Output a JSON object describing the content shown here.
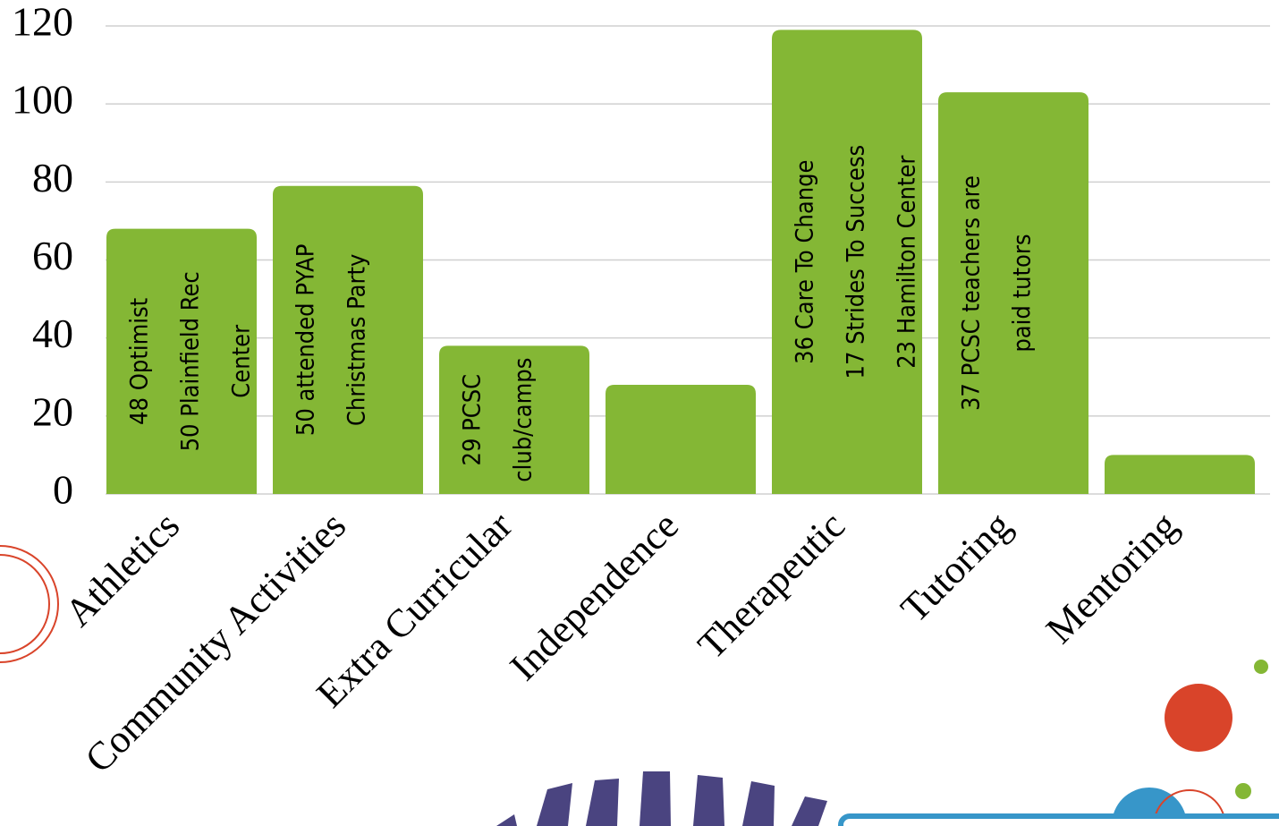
{
  "chart_data": {
    "type": "bar",
    "categories": [
      "Athletics",
      "Community Activities",
      "Extra Curricular",
      "Independence",
      "Therapeutic",
      "Tutoring",
      "Mentoring"
    ],
    "values": [
      68,
      79,
      38,
      28,
      119,
      103,
      10
    ],
    "color": "#84b735",
    "bar_labels": [
      [
        "48 Optimist",
        "50 Plainfield Rec",
        "Center"
      ],
      [
        "50 attended PYAP",
        "Christmas Party"
      ],
      [
        "29 PCSC",
        "club/camps"
      ],
      null,
      [
        "36 Care To Change",
        "17 Strides To Success",
        "23 Hamilton Center"
      ],
      [
        "37 PCSC teachers are",
        "paid tutors"
      ],
      null
    ],
    "ylim": [
      0,
      120
    ],
    "yticks": [
      0,
      20,
      40,
      60,
      80,
      100,
      120
    ],
    "grid": true
  }
}
